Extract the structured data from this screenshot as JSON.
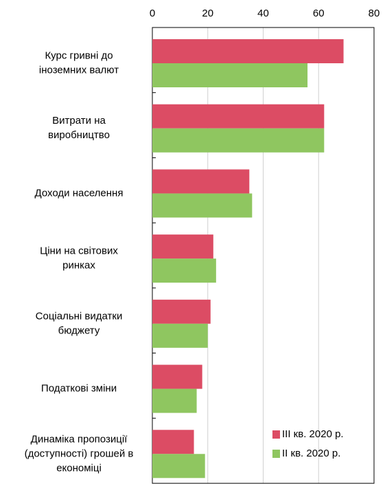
{
  "chart_data": {
    "type": "bar",
    "orientation": "horizontal",
    "categories": [
      [
        "Курс гривні до",
        "іноземних валют"
      ],
      [
        "Витрати на",
        "виробництво"
      ],
      [
        "Доходи населення"
      ],
      [
        "Ціни на світових",
        "ринках"
      ],
      [
        "Соціальні видатки",
        "бюджету"
      ],
      [
        "Податкові зміни"
      ],
      [
        "Динаміка пропозиції",
        "(доступності) грошей в",
        "економіці"
      ]
    ],
    "series": [
      {
        "name": "III кв. 2020 р.",
        "color": "#dc4c64",
        "values": [
          69,
          62,
          35,
          22,
          21,
          18,
          15
        ]
      },
      {
        "name": "II кв. 2020 р.",
        "color": "#8fc660",
        "values": [
          56,
          62,
          36,
          23,
          20,
          16,
          19
        ]
      }
    ],
    "xlim": [
      0,
      80
    ],
    "xticks": [
      0,
      20,
      40,
      60,
      80
    ],
    "grid": true,
    "legend": "lower right"
  }
}
